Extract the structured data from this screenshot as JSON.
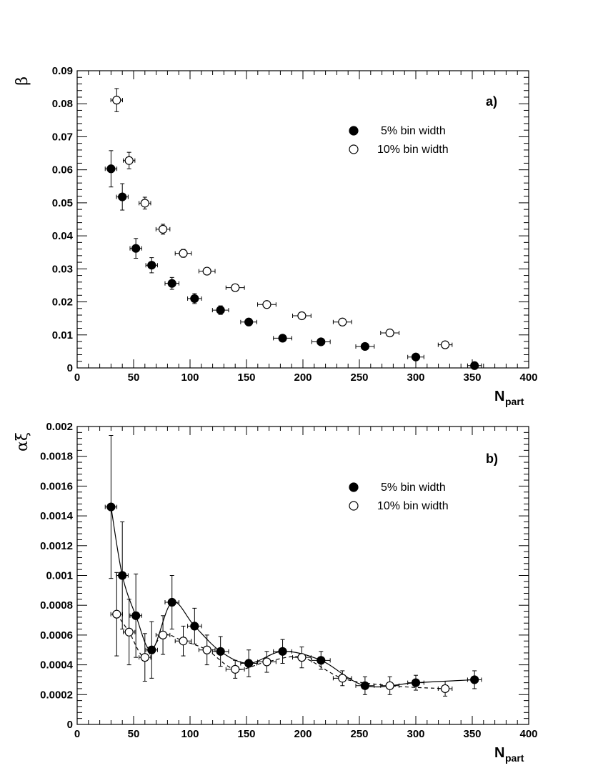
{
  "chart_data": [
    {
      "type": "scatter",
      "panel_label": "a)",
      "ylabel": "β",
      "xlabel_main": "N",
      "xlabel_sub": "part",
      "xlim": [
        0,
        400
      ],
      "ylim": [
        0,
        0.09
      ],
      "xticks": [
        0,
        50,
        100,
        150,
        200,
        250,
        300,
        350,
        400
      ],
      "yticks": [
        "0",
        "0.01",
        "0.02",
        "0.03",
        "0.04",
        "0.05",
        "0.06",
        "0.07",
        "0.08",
        "0.09"
      ],
      "legend_position": "top-right",
      "series": [
        {
          "name": "5% bin width",
          "marker": "filled-circle",
          "points": [
            {
              "x": 30,
              "y": 0.0603,
              "yerr": 0.0055,
              "xerr": 2
            },
            {
              "x": 40,
              "y": 0.0518,
              "yerr": 0.004,
              "xerr": 2
            },
            {
              "x": 52,
              "y": 0.0362,
              "yerr": 0.003,
              "xerr": 2
            },
            {
              "x": 66,
              "y": 0.0311,
              "yerr": 0.0023,
              "xerr": 2
            },
            {
              "x": 84,
              "y": 0.0256,
              "yerr": 0.0018,
              "xerr": 3
            },
            {
              "x": 104,
              "y": 0.021,
              "yerr": 0.0015,
              "xerr": 3
            },
            {
              "x": 127,
              "y": 0.0175,
              "yerr": 0.0013,
              "xerr": 4
            },
            {
              "x": 152,
              "y": 0.0139,
              "yerr": 0.0007,
              "xerr": 4
            },
            {
              "x": 182,
              "y": 0.009,
              "yerr": 0.0005,
              "xerr": 5
            },
            {
              "x": 216,
              "y": 0.0079,
              "yerr": 0.0004,
              "xerr": 5
            },
            {
              "x": 255,
              "y": 0.0065,
              "yerr": 0.0003,
              "xerr": 5
            },
            {
              "x": 300,
              "y": 0.0033,
              "yerr": 0.0002,
              "xerr": 4
            },
            {
              "x": 352,
              "y": 0.0007,
              "yerr": 0.0001,
              "xerr": 3
            }
          ]
        },
        {
          "name": "10% bin width",
          "marker": "open-circle",
          "points": [
            {
              "x": 35,
              "y": 0.0811,
              "yerr": 0.0035,
              "xerr": 2
            },
            {
              "x": 46,
              "y": 0.0628,
              "yerr": 0.0025,
              "xerr": 2
            },
            {
              "x": 60,
              "y": 0.0499,
              "yerr": 0.0018,
              "xerr": 2
            },
            {
              "x": 76,
              "y": 0.042,
              "yerr": 0.0015,
              "xerr": 3
            },
            {
              "x": 94,
              "y": 0.0347,
              "yerr": 0.0012,
              "xerr": 4
            },
            {
              "x": 115,
              "y": 0.0293,
              "yerr": 0.001,
              "xerr": 4
            },
            {
              "x": 140,
              "y": 0.0243,
              "yerr": 0.0008,
              "xerr": 5
            },
            {
              "x": 168,
              "y": 0.0192,
              "yerr": 0.0006,
              "xerr": 5
            },
            {
              "x": 199,
              "y": 0.0158,
              "yerr": 0.0006,
              "xerr": 5
            },
            {
              "x": 235,
              "y": 0.0139,
              "yerr": 0.0006,
              "xerr": 5
            },
            {
              "x": 277,
              "y": 0.0106,
              "yerr": 0.0005,
              "xerr": 5
            },
            {
              "x": 326,
              "y": 0.007,
              "yerr": 0.0003,
              "xerr": 3
            }
          ]
        }
      ]
    },
    {
      "type": "scatter",
      "panel_label": "b)",
      "ylabel": "αξ",
      "xlabel_main": "N",
      "xlabel_sub": "part",
      "xlim": [
        0,
        400
      ],
      "ylim": [
        0,
        0.002
      ],
      "xticks": [
        0,
        50,
        100,
        150,
        200,
        250,
        300,
        350,
        400
      ],
      "yticks": [
        "0",
        "0.0002",
        "0.0004",
        "0.0006",
        "0.0008",
        "0.001",
        "0.0012",
        "0.0014",
        "0.0016",
        "0.0018",
        "0.002"
      ],
      "legend_position": "top-right",
      "series": [
        {
          "name": "5% bin width",
          "marker": "filled-circle",
          "line": "solid",
          "points": [
            {
              "x": 30,
              "y": 0.00146,
              "yerr": 0.00048,
              "xerr": 2
            },
            {
              "x": 40,
              "y": 0.001,
              "yerr": 0.00036,
              "xerr": 2
            },
            {
              "x": 52,
              "y": 0.00073,
              "yerr": 0.00028,
              "xerr": 2
            },
            {
              "x": 66,
              "y": 0.0005,
              "yerr": 0.00019,
              "xerr": 2
            },
            {
              "x": 84,
              "y": 0.00082,
              "yerr": 0.00018,
              "xerr": 3
            },
            {
              "x": 104,
              "y": 0.00066,
              "yerr": 0.00012,
              "xerr": 3
            },
            {
              "x": 127,
              "y": 0.00049,
              "yerr": 0.0001,
              "xerr": 4
            },
            {
              "x": 152,
              "y": 0.00041,
              "yerr": 9e-05,
              "xerr": 4
            },
            {
              "x": 182,
              "y": 0.00049,
              "yerr": 8e-05,
              "xerr": 5
            },
            {
              "x": 216,
              "y": 0.00043,
              "yerr": 6e-05,
              "xerr": 5
            },
            {
              "x": 255,
              "y": 0.00026,
              "yerr": 6e-05,
              "xerr": 5
            },
            {
              "x": 300,
              "y": 0.00028,
              "yerr": 5e-05,
              "xerr": 4
            },
            {
              "x": 352,
              "y": 0.0003,
              "yerr": 6e-05,
              "xerr": 3
            }
          ]
        },
        {
          "name": "10% bin width",
          "marker": "open-circle",
          "line": "dashed",
          "points": [
            {
              "x": 35,
              "y": 0.00074,
              "yerr": 0.00028,
              "xerr": 2
            },
            {
              "x": 46,
              "y": 0.00062,
              "yerr": 0.00022,
              "xerr": 2
            },
            {
              "x": 60,
              "y": 0.00045,
              "yerr": 0.00016,
              "xerr": 2
            },
            {
              "x": 76,
              "y": 0.0006,
              "yerr": 0.00013,
              "xerr": 3
            },
            {
              "x": 94,
              "y": 0.00056,
              "yerr": 0.0001,
              "xerr": 4
            },
            {
              "x": 115,
              "y": 0.0005,
              "yerr": 0.0001,
              "xerr": 4
            },
            {
              "x": 140,
              "y": 0.00037,
              "yerr": 6e-05,
              "xerr": 5
            },
            {
              "x": 168,
              "y": 0.00042,
              "yerr": 7e-05,
              "xerr": 5
            },
            {
              "x": 199,
              "y": 0.00045,
              "yerr": 7e-05,
              "xerr": 5
            },
            {
              "x": 235,
              "y": 0.00031,
              "yerr": 5e-05,
              "xerr": 5
            },
            {
              "x": 277,
              "y": 0.00026,
              "yerr": 6e-05,
              "xerr": 5
            },
            {
              "x": 326,
              "y": 0.00024,
              "yerr": 5e-05,
              "xerr": 3
            }
          ]
        }
      ]
    }
  ]
}
